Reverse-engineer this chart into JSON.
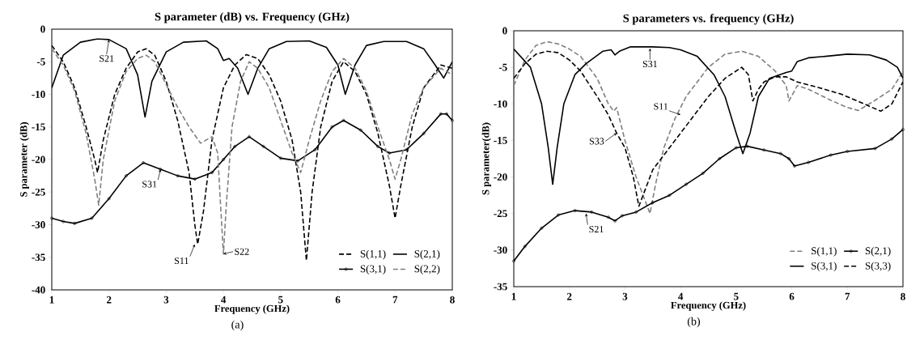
{
  "chart_data": [
    {
      "type": "line",
      "title": "S parameter (dB) vs. Frequency (GHz)",
      "xlabel": "Frequency (GHz)",
      "ylabel": "S parameter (dB)",
      "xlim": [
        1,
        8
      ],
      "ylim": [
        -40,
        0
      ],
      "xticks": [
        1,
        2,
        3,
        4,
        5,
        6,
        7,
        8
      ],
      "yticks": [
        -40,
        -35,
        -30,
        -25,
        -20,
        -15,
        -10,
        -5,
        0
      ],
      "legend": "bottom right",
      "series": [
        {
          "name": "S(1,1)",
          "color": "#000000",
          "line_style": "dashed",
          "x": [
            1,
            1.2,
            1.4,
            1.6,
            1.75,
            1.8,
            1.9,
            2.1,
            2.3,
            2.5,
            2.65,
            2.8,
            3.0,
            3.2,
            3.4,
            3.5,
            3.55,
            3.65,
            3.8,
            4.0,
            4.2,
            4.4,
            4.6,
            4.8,
            5.0,
            5.2,
            5.35,
            5.45,
            5.55,
            5.7,
            5.9,
            6.1,
            6.3,
            6.5,
            6.7,
            6.9,
            7.0,
            7.1,
            7.3,
            7.5,
            7.8,
            8
          ],
          "values": [
            -2.5,
            -5,
            -9,
            -15,
            -20,
            -22,
            -17,
            -10,
            -6,
            -3.5,
            -3,
            -4,
            -8,
            -14,
            -22,
            -30,
            -33,
            -28,
            -17,
            -9,
            -5.5,
            -3.9,
            -4.5,
            -7,
            -11,
            -17,
            -25,
            -35.5,
            -25,
            -15,
            -8,
            -5,
            -6.5,
            -10,
            -16,
            -24,
            -29,
            -24,
            -15,
            -9,
            -5.5,
            -6
          ]
        },
        {
          "name": "S(2,1)",
          "color": "#000000",
          "line_style": "solid",
          "x": [
            1,
            1.2,
            1.5,
            1.8,
            2.0,
            2.3,
            2.5,
            2.63,
            2.75,
            3.0,
            3.3,
            3.7,
            3.9,
            4.0,
            4.1,
            4.25,
            4.43,
            4.6,
            4.8,
            5.1,
            5.5,
            5.8,
            6.0,
            6.13,
            6.3,
            6.5,
            6.8,
            7.2,
            7.5,
            7.7,
            7.85,
            8
          ],
          "values": [
            -9,
            -4,
            -2,
            -1.5,
            -1.6,
            -3,
            -7,
            -13.5,
            -8,
            -3.5,
            -2,
            -1.8,
            -3,
            -4.8,
            -4.5,
            -6,
            -10,
            -6,
            -3,
            -1.9,
            -1.8,
            -2.8,
            -5.5,
            -10,
            -5.5,
            -2.5,
            -1.9,
            -1.9,
            -3,
            -5.5,
            -7.5,
            -5
          ]
        },
        {
          "name": "S(3,1)",
          "color": "#000000",
          "line_style": "solid",
          "marker": "circle",
          "x": [
            1,
            1.2,
            1.4,
            1.7,
            2.0,
            2.3,
            2.6,
            2.9,
            3.2,
            3.5,
            3.8,
            4.0,
            4.2,
            4.45,
            4.7,
            5.0,
            5.3,
            5.6,
            5.9,
            6.1,
            6.4,
            6.7,
            6.9,
            7.2,
            7.5,
            7.8,
            7.9,
            8
          ],
          "values": [
            -29,
            -29.5,
            -29.8,
            -29,
            -26,
            -22.5,
            -20.5,
            -21.5,
            -22.5,
            -23,
            -22,
            -20,
            -18,
            -16.5,
            -18,
            -19.8,
            -20.2,
            -18.5,
            -15,
            -14,
            -15.5,
            -18,
            -19,
            -18.5,
            -16,
            -13,
            -13,
            -14
          ]
        },
        {
          "name": "S(2,2)",
          "color": "#808080",
          "line_style": "dashed",
          "x": [
            1,
            1.2,
            1.4,
            1.6,
            1.75,
            1.82,
            1.9,
            2.1,
            2.3,
            2.5,
            2.65,
            2.8,
            3.0,
            3.2,
            3.4,
            3.6,
            3.8,
            3.9,
            3.95,
            4.0,
            4.05,
            4.15,
            4.3,
            4.45,
            4.6,
            4.8,
            5.0,
            5.2,
            5.35,
            5.5,
            5.7,
            5.9,
            6.1,
            6.3,
            6.5,
            6.7,
            6.9,
            7.0,
            7.1,
            7.3,
            7.5,
            7.8,
            8
          ],
          "values": [
            -3,
            -5.5,
            -9.5,
            -16,
            -23,
            -27,
            -20,
            -11,
            -6.5,
            -4.5,
            -4,
            -5,
            -8.5,
            -12,
            -15,
            -17.5,
            -16.5,
            -19,
            -27,
            -34.5,
            -27,
            -15,
            -8,
            -5,
            -6,
            -9,
            -14,
            -19,
            -22,
            -17,
            -11,
            -6.5,
            -4.5,
            -6,
            -9.5,
            -15,
            -20,
            -23,
            -20,
            -13,
            -9,
            -6,
            -7
          ]
        }
      ],
      "annotations": [
        {
          "text": "S21",
          "x": 2.0,
          "y": -1.6
        },
        {
          "text": "S31",
          "x": 2.9,
          "y": -21.5
        },
        {
          "text": "S11",
          "x": 3.5,
          "y": -33
        },
        {
          "text": "S22",
          "x": 4.0,
          "y": -34.5
        },
        "(a)"
      ]
    },
    {
      "type": "line",
      "title": "S parameters vs. frequency (GHz)",
      "xlabel": "Frequency (GHz)",
      "ylabel": "S parameter(dB)",
      "xlim": [
        1,
        8
      ],
      "ylim": [
        -35,
        0
      ],
      "xticks": [
        1,
        2,
        3,
        4,
        5,
        6,
        7,
        8
      ],
      "yticks": [
        -35,
        -30,
        -25,
        -20,
        -15,
        -10,
        -5,
        0
      ],
      "legend": "bottom right",
      "series": [
        {
          "name": "S(1,1)",
          "color": "#808080",
          "line_style": "dashed",
          "x": [
            1,
            1.2,
            1.4,
            1.6,
            1.8,
            2.0,
            2.2,
            2.5,
            2.7,
            2.8,
            2.85,
            3.0,
            3.2,
            3.35,
            3.45,
            3.55,
            3.7,
            3.9,
            4.1,
            4.5,
            4.8,
            5.1,
            5.4,
            5.7,
            5.9,
            5.95,
            6.1,
            6.3,
            6.7,
            7.0,
            7.2,
            7.5,
            7.8,
            8
          ],
          "values": [
            -7.5,
            -4,
            -2,
            -1.5,
            -1.8,
            -2.5,
            -3.5,
            -6.5,
            -10,
            -11,
            -10.5,
            -15,
            -20,
            -23,
            -25,
            -21,
            -16,
            -12,
            -9,
            -5,
            -3.2,
            -2.8,
            -3.5,
            -5.5,
            -7.5,
            -9.6,
            -7.5,
            -8,
            -9.5,
            -10.5,
            -10.9,
            -9.5,
            -8,
            -5.6
          ]
        },
        {
          "name": "S(2,1)",
          "color": "#000000",
          "line_style": "solid",
          "marker": "circle",
          "x": [
            1,
            1.2,
            1.5,
            1.8,
            2.1,
            2.4,
            2.7,
            2.82,
            2.95,
            3.2,
            3.5,
            3.8,
            4.1,
            4.4,
            4.7,
            5.0,
            5.2,
            5.5,
            5.8,
            5.95,
            6.05,
            6.3,
            6.7,
            7.0,
            7.5,
            7.8,
            8
          ],
          "values": [
            -31.5,
            -29.5,
            -27,
            -25.2,
            -24.6,
            -24.8,
            -25.5,
            -26,
            -25.3,
            -24.8,
            -23.5,
            -22.5,
            -21,
            -19.5,
            -17.5,
            -16,
            -15.8,
            -16.3,
            -16.8,
            -17.5,
            -18.5,
            -18,
            -17,
            -16.5,
            -16.1,
            -14.8,
            -13.5
          ]
        },
        {
          "name": "S(3,1)",
          "color": "#000000",
          "line_style": "solid",
          "x": [
            1,
            1.3,
            1.5,
            1.62,
            1.7,
            1.78,
            1.9,
            2.1,
            2.3,
            2.6,
            2.75,
            2.82,
            2.9,
            3.1,
            3.5,
            3.8,
            4.0,
            4.3,
            4.6,
            4.8,
            5.0,
            5.12,
            5.25,
            5.4,
            5.6,
            5.9,
            6.0,
            6.1,
            6.3,
            6.6,
            7.0,
            7.4,
            7.7,
            7.9,
            8
          ],
          "values": [
            -2.5,
            -5,
            -10,
            -16,
            -21,
            -16,
            -10,
            -6,
            -4.5,
            -2.8,
            -2.6,
            -3.3,
            -2.8,
            -2.2,
            -2.2,
            -2.3,
            -2.6,
            -3.5,
            -6,
            -9,
            -14,
            -16.8,
            -14,
            -9,
            -6.5,
            -5.7,
            -5.5,
            -4.2,
            -3.7,
            -3.5,
            -3.2,
            -3.3,
            -4,
            -5,
            -6.5
          ]
        },
        {
          "name": "S(3,3)",
          "color": "#000000",
          "line_style": "dashed",
          "x": [
            1,
            1.2,
            1.4,
            1.6,
            1.8,
            2.0,
            2.2,
            2.5,
            2.7,
            2.85,
            3.0,
            3.15,
            3.25,
            3.35,
            3.5,
            3.8,
            4.1,
            4.5,
            4.8,
            5.1,
            5.22,
            5.3,
            5.4,
            5.5,
            5.7,
            5.9,
            6.1,
            6.5,
            6.9,
            7.3,
            7.6,
            7.8,
            8
          ],
          "values": [
            -6.5,
            -4.5,
            -3.2,
            -2.8,
            -3,
            -4,
            -5.5,
            -9,
            -11.5,
            -14,
            -16,
            -20,
            -24,
            -22,
            -19,
            -16,
            -13,
            -9,
            -6.5,
            -5,
            -6,
            -9.6,
            -8,
            -7,
            -6.3,
            -6.3,
            -7,
            -7.8,
            -8.7,
            -10,
            -11,
            -10,
            -7
          ]
        }
      ],
      "annotations": [
        {
          "text": "S31",
          "x": 3.45,
          "y": -2.4
        },
        {
          "text": "S11",
          "x": 4.0,
          "y": -11.5
        },
        {
          "text": "S33",
          "x": 2.85,
          "y": -14
        },
        {
          "text": "S21",
          "x": 2.3,
          "y": -25
        },
        "(b)"
      ]
    }
  ]
}
